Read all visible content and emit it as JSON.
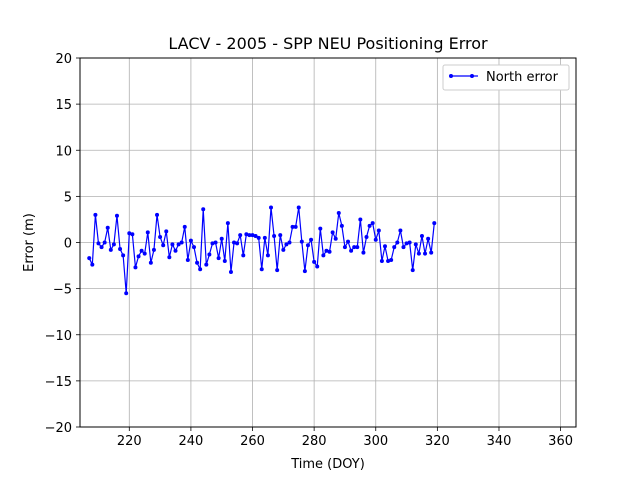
{
  "chart_data": {
    "type": "line",
    "title": "LACV - 2005 - SPP NEU Positioning Error",
    "xlabel": "Time (DOY)",
    "ylabel": "Error (m)",
    "xlim": [
      204,
      365
    ],
    "ylim": [
      -20,
      20
    ],
    "xticks": [
      220,
      240,
      260,
      280,
      300,
      320,
      340,
      360
    ],
    "yticks": [
      -20,
      -15,
      -10,
      -5,
      0,
      5,
      10,
      15,
      20
    ],
    "grid": true,
    "legend": {
      "position": "top-right",
      "entries": [
        "North error"
      ]
    },
    "series": [
      {
        "name": "North error",
        "color": "#0000ff",
        "marker": "circle",
        "x": [
          207,
          208,
          209,
          210,
          211,
          212,
          213,
          214,
          215,
          216,
          217,
          218,
          219,
          220,
          221,
          222,
          223,
          224,
          225,
          226,
          227,
          228,
          229,
          230,
          231,
          232,
          233,
          234,
          235,
          236,
          237,
          238,
          239,
          240,
          241,
          242,
          243,
          244,
          245,
          246,
          247,
          248,
          249,
          250,
          251,
          252,
          253,
          254,
          255,
          256,
          257,
          258,
          259,
          260,
          261,
          262,
          263,
          264,
          265,
          266,
          267,
          268,
          269,
          270,
          271,
          272,
          273,
          274,
          275,
          276,
          277,
          278,
          279,
          280,
          281,
          282,
          283,
          284,
          285,
          286,
          287,
          288,
          289,
          290,
          291,
          292,
          293,
          294,
          295,
          296,
          297,
          298,
          299,
          300,
          301,
          302,
          303,
          304,
          305,
          306,
          307,
          308,
          309,
          310,
          311,
          312,
          313,
          314,
          315,
          316,
          317,
          318,
          319
        ],
        "y": [
          -1.7,
          -2.4,
          3.0,
          -0.1,
          -0.5,
          0.0,
          1.6,
          -0.8,
          -0.2,
          2.9,
          -0.7,
          -1.4,
          -5.5,
          1.0,
          0.9,
          -2.7,
          -1.5,
          -0.9,
          -1.2,
          1.1,
          -2.2,
          -0.8,
          3.0,
          0.6,
          -0.3,
          1.2,
          -1.6,
          -0.2,
          -0.9,
          -0.2,
          0.0,
          1.7,
          -1.9,
          0.2,
          -0.5,
          -2.2,
          -2.9,
          3.6,
          -2.4,
          -1.3,
          -0.1,
          0.0,
          -1.7,
          0.4,
          -2.0,
          2.1,
          -3.2,
          0.0,
          -0.1,
          0.8,
          -1.4,
          0.9,
          0.8,
          0.8,
          0.7,
          0.5,
          -2.9,
          0.5,
          -1.4,
          3.8,
          0.7,
          -3.0,
          0.8,
          -0.8,
          -0.2,
          0.0,
          1.7,
          1.7,
          3.8,
          0.1,
          -3.1,
          -0.3,
          0.3,
          -2.1,
          -2.6,
          1.5,
          -1.4,
          -0.9,
          -1.0,
          1.1,
          0.4,
          3.2,
          1.8,
          -0.5,
          0.1,
          -0.9,
          -0.5,
          -0.5,
          2.5,
          -1.1,
          0.6,
          1.8,
          2.1,
          0.3,
          1.3,
          -2.0,
          -0.4,
          -2.0,
          -1.9,
          -0.5,
          0.0,
          1.3,
          -0.5,
          -0.1,
          0.0,
          -3.0,
          -0.2,
          -1.2,
          0.7,
          -1.2,
          0.4,
          -1.1,
          2.1
        ]
      }
    ]
  }
}
